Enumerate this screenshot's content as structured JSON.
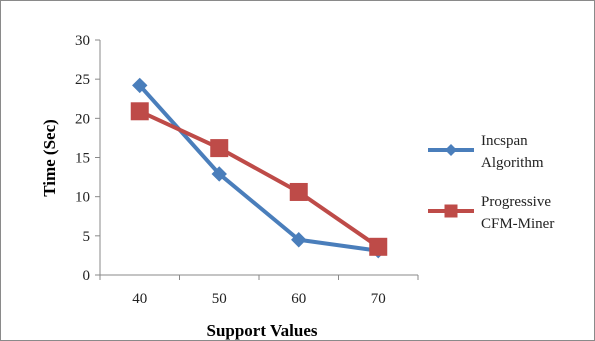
{
  "chart_data": {
    "type": "line",
    "title": "",
    "xlabel": "Support Values",
    "ylabel": "Time (Sec)",
    "categories": [
      "40",
      "50",
      "60",
      "70"
    ],
    "ylim": [
      0,
      30
    ],
    "yticks": [
      "0",
      "5",
      "10",
      "15",
      "20",
      "25",
      "30"
    ],
    "grid": false,
    "legend_position": "right",
    "series": [
      {
        "name": "Incspan Algorithm",
        "legend_lines": [
          "Incspan",
          "Algorithm"
        ],
        "values": [
          24.2,
          12.9,
          4.5,
          3.1
        ],
        "color": "#4a7ebb",
        "marker": "diamond"
      },
      {
        "name": "Progressive CFM-Miner",
        "legend_lines": [
          "Progressive",
          "CFM-Miner"
        ],
        "values": [
          20.9,
          16.2,
          10.6,
          3.6
        ],
        "color": "#be4b48",
        "marker": "square"
      }
    ]
  }
}
